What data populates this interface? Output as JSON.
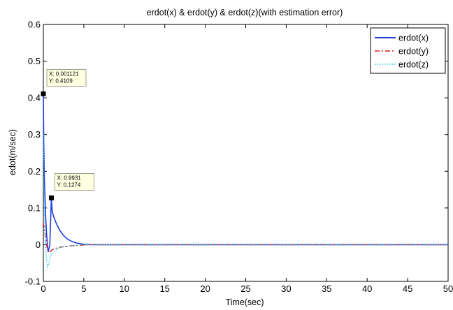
{
  "chart_data": {
    "type": "line",
    "title": "erdot(x) & erdot(y) & erdot(z)(with estimation error)",
    "xlabel": "Time(sec)",
    "ylabel": "edot(m/sec)",
    "xlim": [
      0,
      50
    ],
    "ylim": [
      -0.1,
      0.6
    ],
    "x_ticks": [
      "0",
      "5",
      "10",
      "15",
      "20",
      "25",
      "30",
      "35",
      "40",
      "45",
      "50"
    ],
    "y_ticks": [
      "-0.1",
      "0",
      "0.1",
      "0.2",
      "0.3",
      "0.4",
      "0.5",
      "0.6"
    ],
    "grid": false,
    "legend_position": "top-right",
    "series": [
      {
        "name": "erdot(x)",
        "color": "#1f3fe0",
        "style": "solid",
        "points": [
          [
            0,
            0.41
          ],
          [
            0.05,
            0.28
          ],
          [
            0.12,
            0.19
          ],
          [
            0.2,
            0.13
          ],
          [
            0.3,
            0.07
          ],
          [
            0.4,
            0.03
          ],
          [
            0.5,
            0.0
          ],
          [
            0.6,
            -0.02
          ],
          [
            0.7,
            -0.01
          ],
          [
            0.8,
            0.0
          ],
          [
            0.99,
            0.127
          ],
          [
            1.1,
            0.09
          ],
          [
            1.3,
            0.075
          ],
          [
            1.6,
            0.058
          ],
          [
            2.0,
            0.04
          ],
          [
            2.5,
            0.025
          ],
          [
            3.0,
            0.015
          ],
          [
            3.5,
            0.009
          ],
          [
            4.0,
            0.005
          ],
          [
            4.5,
            0.003
          ],
          [
            5.0,
            0.001
          ],
          [
            6.0,
            0.0
          ],
          [
            50,
            0.0
          ]
        ]
      },
      {
        "name": "erdot(y)",
        "color": "#d41a1a",
        "style": "dashdot",
        "points": [
          [
            0,
            0.06
          ],
          [
            0.2,
            0.03
          ],
          [
            0.4,
            0.0
          ],
          [
            0.6,
            -0.02
          ],
          [
            0.8,
            -0.02
          ],
          [
            1.0,
            -0.015
          ],
          [
            1.5,
            -0.01
          ],
          [
            2.0,
            -0.007
          ],
          [
            3.0,
            -0.004
          ],
          [
            4.0,
            -0.002
          ],
          [
            5.0,
            -0.001
          ],
          [
            6.0,
            0.0
          ],
          [
            50,
            0.0
          ]
        ]
      },
      {
        "name": "erdot(z)",
        "color": "#2ec8e8",
        "style": "dotted",
        "points": [
          [
            0,
            0.3
          ],
          [
            0.08,
            0.15
          ],
          [
            0.2,
            0.04
          ],
          [
            0.35,
            -0.03
          ],
          [
            0.5,
            -0.06
          ],
          [
            0.7,
            -0.05
          ],
          [
            0.9,
            -0.03
          ],
          [
            1.1,
            -0.025
          ],
          [
            1.5,
            -0.015
          ],
          [
            2.0,
            -0.008
          ],
          [
            3.0,
            -0.004
          ],
          [
            4.0,
            -0.002
          ],
          [
            5.0,
            0.0
          ],
          [
            50,
            0.0
          ]
        ]
      }
    ],
    "datatips": [
      {
        "x": 0.001121,
        "y": 0.4109,
        "label_x": "X: 0.001121",
        "label_y": "Y: 0.4109"
      },
      {
        "x": 0.9931,
        "y": 0.1274,
        "label_x": "X: 0.9931",
        "label_y": "Y: 0.1274"
      }
    ]
  }
}
